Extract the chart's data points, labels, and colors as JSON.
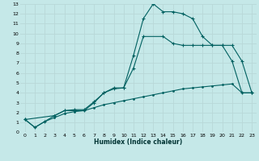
{
  "xlabel": "Humidex (Indice chaleur)",
  "bg_color": "#c5e8e8",
  "grid_color": "#b8d8d8",
  "line_color": "#006060",
  "xlim": [
    -0.5,
    23.5
  ],
  "ylim": [
    0,
    13
  ],
  "xticks": [
    0,
    1,
    2,
    3,
    4,
    5,
    6,
    7,
    8,
    9,
    10,
    11,
    12,
    13,
    14,
    15,
    16,
    17,
    18,
    19,
    20,
    21,
    22,
    23
  ],
  "yticks": [
    0,
    1,
    2,
    3,
    4,
    5,
    6,
    7,
    8,
    9,
    10,
    11,
    12,
    13
  ],
  "line1_x": [
    0,
    1,
    2,
    3,
    4,
    5,
    6,
    7,
    8,
    9,
    10,
    11,
    12,
    13,
    14,
    15,
    16,
    17,
    18,
    19,
    20,
    21,
    22,
    23
  ],
  "line1_y": [
    1.3,
    0.5,
    1.1,
    1.7,
    2.2,
    2.2,
    2.2,
    3.0,
    4.0,
    4.4,
    4.5,
    7.8,
    11.5,
    13.0,
    12.2,
    12.2,
    12.0,
    11.5,
    9.7,
    8.8,
    8.8,
    7.2,
    4.0,
    4.0
  ],
  "line2_x": [
    0,
    3,
    4,
    5,
    6,
    7,
    8,
    9,
    10,
    11,
    12,
    14,
    15,
    16,
    17,
    18,
    19,
    20,
    21,
    22,
    23
  ],
  "line2_y": [
    1.3,
    1.7,
    2.2,
    2.3,
    2.3,
    3.1,
    4.0,
    4.5,
    4.5,
    6.5,
    9.7,
    9.7,
    9.0,
    8.8,
    8.8,
    8.8,
    8.8,
    8.8,
    8.8,
    7.2,
    4.0
  ],
  "line3_x": [
    0,
    1,
    2,
    3,
    4,
    5,
    6,
    7,
    8,
    9,
    10,
    11,
    12,
    13,
    14,
    15,
    16,
    17,
    18,
    19,
    20,
    21,
    22,
    23
  ],
  "line3_y": [
    1.3,
    0.5,
    1.1,
    1.5,
    1.9,
    2.1,
    2.2,
    2.5,
    2.8,
    3.0,
    3.2,
    3.4,
    3.6,
    3.8,
    4.0,
    4.2,
    4.4,
    4.5,
    4.6,
    4.7,
    4.8,
    4.9,
    4.0,
    4.0
  ]
}
